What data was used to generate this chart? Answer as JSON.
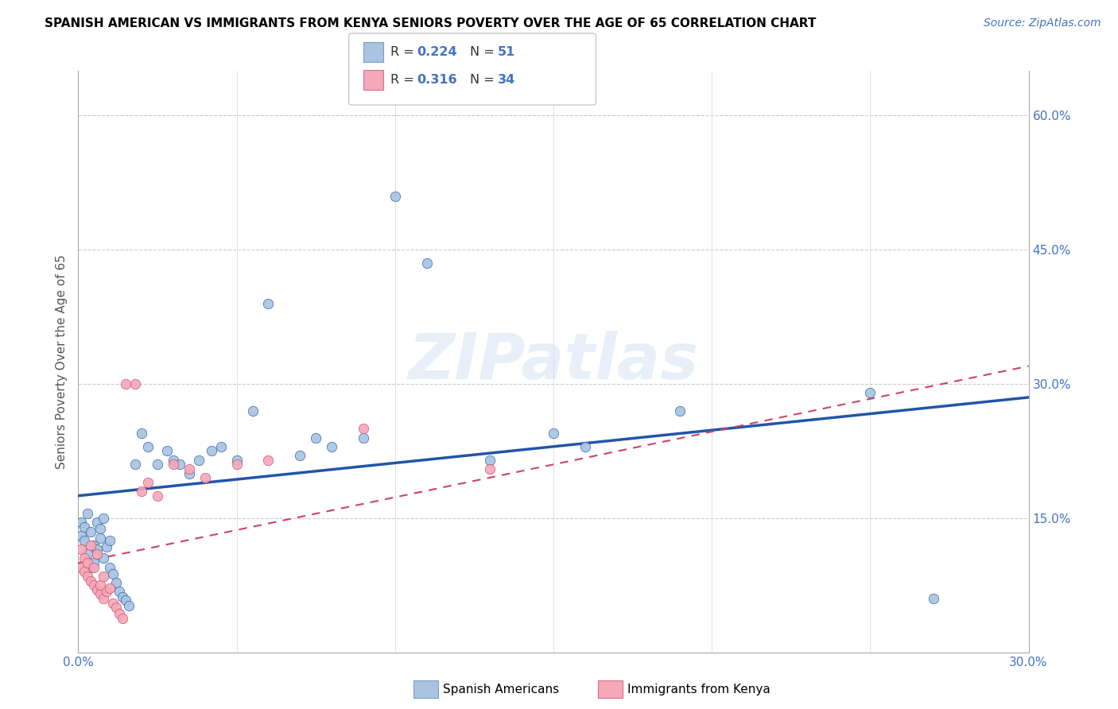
{
  "title": "SPANISH AMERICAN VS IMMIGRANTS FROM KENYA SENIORS POVERTY OVER THE AGE OF 65 CORRELATION CHART",
  "source": "Source: ZipAtlas.com",
  "ylabel": "Seniors Poverty Over the Age of 65",
  "xlim": [
    0.0,
    0.3
  ],
  "ylim": [
    0.0,
    0.65
  ],
  "xtick_positions": [
    0.0,
    0.05,
    0.1,
    0.15,
    0.2,
    0.25,
    0.3
  ],
  "xtick_labels": [
    "0.0%",
    "",
    "",
    "",
    "",
    "",
    "30.0%"
  ],
  "ytick_positions": [
    0.0,
    0.15,
    0.3,
    0.45,
    0.6
  ],
  "ytick_labels_right": [
    "",
    "15.0%",
    "30.0%",
    "45.0%",
    "60.0%"
  ],
  "r_blue": 0.224,
  "n_blue": 51,
  "r_pink": 0.316,
  "n_pink": 34,
  "blue_color": "#a8c4e0",
  "pink_color": "#f4a8b8",
  "line_blue": "#2255aa",
  "line_pink": "#cc4466",
  "legend_blue_label": "Spanish Americans",
  "legend_pink_label": "Immigrants from Kenya",
  "watermark": "ZIPatlas",
  "blue_scatter_x": [
    0.001,
    0.001,
    0.002,
    0.002,
    0.003,
    0.003,
    0.004,
    0.004,
    0.005,
    0.005,
    0.006,
    0.006,
    0.007,
    0.007,
    0.008,
    0.008,
    0.009,
    0.01,
    0.01,
    0.011,
    0.012,
    0.013,
    0.014,
    0.015,
    0.016,
    0.018,
    0.02,
    0.022,
    0.025,
    0.028,
    0.03,
    0.032,
    0.035,
    0.038,
    0.042,
    0.045,
    0.05,
    0.055,
    0.06,
    0.07,
    0.075,
    0.08,
    0.09,
    0.1,
    0.11,
    0.13,
    0.15,
    0.16,
    0.19,
    0.25,
    0.27
  ],
  "blue_scatter_y": [
    0.13,
    0.145,
    0.14,
    0.125,
    0.11,
    0.155,
    0.135,
    0.095,
    0.12,
    0.1,
    0.145,
    0.115,
    0.128,
    0.138,
    0.105,
    0.15,
    0.118,
    0.125,
    0.095,
    0.088,
    0.078,
    0.068,
    0.062,
    0.058,
    0.052,
    0.21,
    0.245,
    0.23,
    0.21,
    0.225,
    0.215,
    0.21,
    0.2,
    0.215,
    0.225,
    0.23,
    0.215,
    0.27,
    0.39,
    0.22,
    0.24,
    0.23,
    0.24,
    0.51,
    0.435,
    0.215,
    0.245,
    0.23,
    0.27,
    0.29,
    0.06
  ],
  "pink_scatter_x": [
    0.001,
    0.001,
    0.002,
    0.002,
    0.003,
    0.003,
    0.004,
    0.004,
    0.005,
    0.005,
    0.006,
    0.006,
    0.007,
    0.007,
    0.008,
    0.008,
    0.009,
    0.01,
    0.011,
    0.012,
    0.013,
    0.014,
    0.015,
    0.018,
    0.02,
    0.022,
    0.025,
    0.03,
    0.035,
    0.04,
    0.05,
    0.06,
    0.09,
    0.13
  ],
  "pink_scatter_y": [
    0.095,
    0.115,
    0.105,
    0.09,
    0.085,
    0.1,
    0.08,
    0.12,
    0.075,
    0.095,
    0.07,
    0.11,
    0.065,
    0.075,
    0.06,
    0.085,
    0.068,
    0.072,
    0.055,
    0.05,
    0.043,
    0.038,
    0.3,
    0.3,
    0.18,
    0.19,
    0.175,
    0.21,
    0.205,
    0.195,
    0.21,
    0.215,
    0.25,
    0.205
  ],
  "figsize": [
    14.06,
    8.92
  ],
  "dpi": 100
}
